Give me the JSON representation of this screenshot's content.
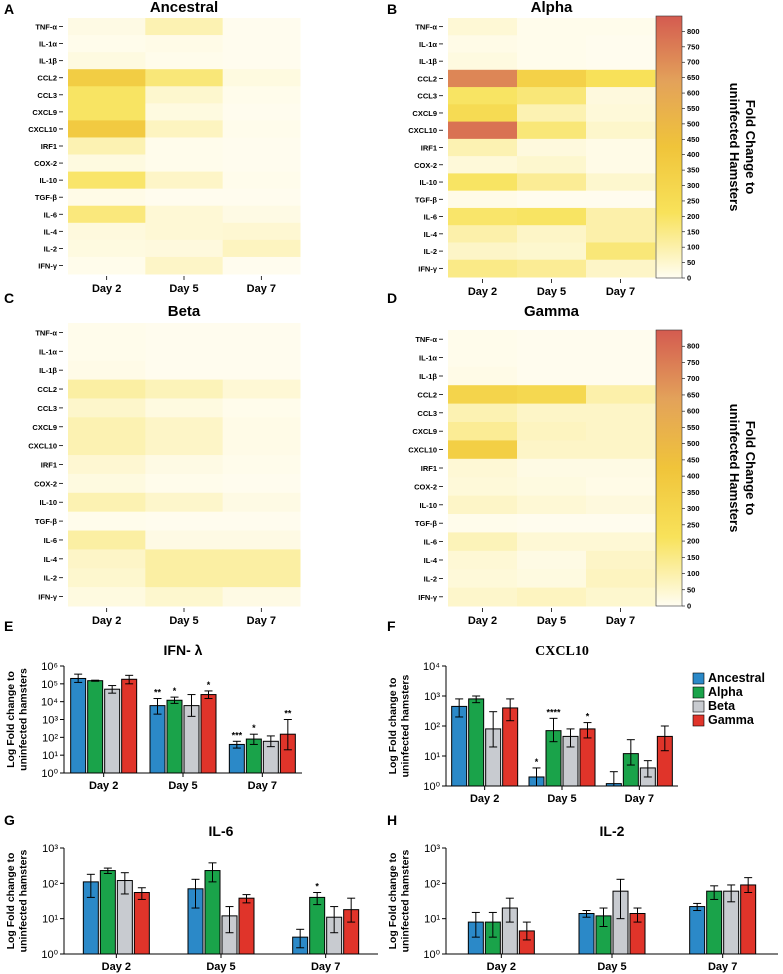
{
  "figure": {
    "panel_letters": [
      "A",
      "B",
      "C",
      "D",
      "E",
      "F",
      "G",
      "H"
    ],
    "colorbar": {
      "label_line1": "Fold Change to",
      "label_line2": "uninfected Hamsters",
      "ticks": [
        0,
        50,
        100,
        150,
        200,
        250,
        300,
        350,
        400,
        450,
        500,
        550,
        600,
        650,
        700,
        750,
        800
      ],
      "range": [
        0,
        850
      ],
      "colors": [
        "#fffdf2",
        "#f8e25a",
        "#f0c43a",
        "#e3a25a",
        "#d45b50"
      ]
    },
    "bar_legend": {
      "entries": [
        "Ancestral",
        "Alpha",
        "Beta",
        "Gamma"
      ],
      "colors": [
        "#2b89c8",
        "#1aa34a",
        "#c8cbd0",
        "#e0342a"
      ]
    },
    "sig_marks": {
      "ifn": [
        "**",
        "*",
        "*",
        "***",
        "*",
        "**"
      ],
      "cxcl10": [
        "*",
        "****",
        "*"
      ],
      "il6": [
        "*"
      ]
    }
  },
  "chart_data": [
    {
      "type": "heatmap",
      "panel": "A",
      "title": "Ancestral",
      "columns": [
        "Day 2",
        "Day 5",
        "Day 7"
      ],
      "rows": [
        "TNF-α",
        "IL-1α",
        "IL-1β",
        "CCL2",
        "CCL3",
        "CXCL9",
        "CXCL10",
        "IRF1",
        "COX-2",
        "IL-10",
        "TGF-β",
        "IL-6",
        "IL-4",
        "IL-2",
        "IFN-γ"
      ],
      "values": [
        [
          20,
          90,
          5
        ],
        [
          10,
          15,
          5
        ],
        [
          25,
          10,
          5
        ],
        [
          360,
          170,
          25
        ],
        [
          200,
          50,
          10
        ],
        [
          200,
          25,
          5
        ],
        [
          380,
          70,
          10
        ],
        [
          90,
          10,
          5
        ],
        [
          25,
          10,
          5
        ],
        [
          190,
          60,
          10
        ],
        [
          15,
          5,
          5
        ],
        [
          165,
          40,
          20
        ],
        [
          30,
          40,
          45
        ],
        [
          25,
          30,
          70
        ],
        [
          10,
          60,
          5
        ]
      ]
    },
    {
      "type": "heatmap",
      "panel": "B",
      "title": "Alpha",
      "columns": [
        "Day 2",
        "Day 5",
        "Day 7"
      ],
      "rows": [
        "TNF-α",
        "IL-1α",
        "IL-1β",
        "CCL2",
        "CCL3",
        "CXCL9",
        "CXCL10",
        "IRF1",
        "COX-2",
        "IL-10",
        "TGF-β",
        "IL-6",
        "IL-4",
        "IL-2",
        "IFN-γ"
      ],
      "values": [
        [
          40,
          10,
          10
        ],
        [
          15,
          10,
          5
        ],
        [
          25,
          10,
          5
        ],
        [
          720,
          330,
          220
        ],
        [
          200,
          170,
          30
        ],
        [
          260,
          90,
          35
        ],
        [
          780,
          170,
          55
        ],
        [
          90,
          30,
          15
        ],
        [
          35,
          50,
          15
        ],
        [
          200,
          130,
          50
        ],
        [
          15,
          5,
          5
        ],
        [
          190,
          200,
          100
        ],
        [
          100,
          60,
          100
        ],
        [
          60,
          50,
          170
        ],
        [
          150,
          130,
          60
        ]
      ]
    },
    {
      "type": "heatmap",
      "panel": "C",
      "title": "Beta",
      "columns": [
        "Day 2",
        "Day 5",
        "Day 7"
      ],
      "rows": [
        "TNF-α",
        "IL-1α",
        "IL-1β",
        "CCL2",
        "CCL3",
        "CXCL9",
        "CXCL10",
        "IRF1",
        "COX-2",
        "IL-10",
        "TGF-β",
        "IL-6",
        "IL-4",
        "IL-2",
        "IFN-γ"
      ],
      "values": [
        [
          10,
          5,
          5
        ],
        [
          10,
          5,
          5
        ],
        [
          15,
          5,
          5
        ],
        [
          110,
          80,
          40
        ],
        [
          55,
          25,
          10
        ],
        [
          90,
          60,
          15
        ],
        [
          90,
          60,
          15
        ],
        [
          45,
          20,
          10
        ],
        [
          25,
          10,
          5
        ],
        [
          90,
          55,
          20
        ],
        [
          10,
          5,
          5
        ],
        [
          110,
          20,
          20
        ],
        [
          60,
          110,
          110
        ],
        [
          50,
          110,
          110
        ],
        [
          25,
          50,
          20
        ]
      ]
    },
    {
      "type": "heatmap",
      "panel": "D",
      "title": "Gamma",
      "columns": [
        "Day 2",
        "Day 5",
        "Day 7"
      ],
      "rows": [
        "TNF-α",
        "IL-1α",
        "IL-1β",
        "CCL2",
        "CCL3",
        "CXCL9",
        "CXCL10",
        "IRF1",
        "COX-2",
        "IL-10",
        "TGF-β",
        "IL-6",
        "IL-4",
        "IL-2",
        "IFN-γ"
      ],
      "values": [
        [
          10,
          5,
          5
        ],
        [
          10,
          5,
          5
        ],
        [
          15,
          5,
          5
        ],
        [
          310,
          280,
          100
        ],
        [
          90,
          60,
          60
        ],
        [
          130,
          70,
          60
        ],
        [
          350,
          60,
          60
        ],
        [
          40,
          20,
          20
        ],
        [
          35,
          25,
          15
        ],
        [
          60,
          40,
          30
        ],
        [
          10,
          5,
          5
        ],
        [
          80,
          40,
          40
        ],
        [
          40,
          20,
          60
        ],
        [
          35,
          25,
          70
        ],
        [
          55,
          70,
          50
        ]
      ]
    },
    {
      "type": "bar",
      "panel": "E",
      "title": "IFN- λ",
      "yscale": "log",
      "ylabel_line1": "Log Fold change to",
      "ylabel_line2": "uninfected hamsters",
      "yticks": [
        "10⁰",
        "10¹",
        "10²",
        "10³",
        "10⁴",
        "10⁵",
        "10⁶"
      ],
      "ylim": [
        1,
        1000000
      ],
      "categories": [
        "Day 2",
        "Day 5",
        "Day 7"
      ],
      "series": [
        {
          "name": "Ancestral",
          "values": [
            200000,
            6000,
            40
          ],
          "err": [
            [
              120000,
              350000
            ],
            [
              2000,
              15000
            ],
            [
              25,
              60
            ]
          ]
        },
        {
          "name": "Alpha",
          "values": [
            150000,
            12000,
            80
          ],
          "err": [
            [
              140000,
              160000
            ],
            [
              8000,
              18000
            ],
            [
              40,
              150
            ]
          ]
        },
        {
          "name": "Beta",
          "values": [
            50000,
            6000,
            60
          ],
          "err": [
            [
              30000,
              80000
            ],
            [
              1500,
              25000
            ],
            [
              30,
              120
            ]
          ]
        },
        {
          "name": "Gamma",
          "values": [
            180000,
            25000,
            150
          ],
          "err": [
            [
              100000,
              300000
            ],
            [
              15000,
              40000
            ],
            [
              20,
              1000
            ]
          ]
        }
      ],
      "sig_key": "ifn"
    },
    {
      "type": "bar",
      "panel": "F",
      "title": "CXCL10",
      "yscale": "log",
      "ylabel_line1": "Log Fold change to",
      "ylabel_line2": "uninfected hamsters",
      "yticks": [
        "10⁰",
        "10¹",
        "10²",
        "10³",
        "10⁴"
      ],
      "ylim": [
        1,
        10000
      ],
      "categories": [
        "Day 2",
        "Day 5",
        "Day 7"
      ],
      "series": [
        {
          "name": "Ancestral",
          "values": [
            450,
            2,
            1.2
          ],
          "err": [
            [
              200,
              800
            ],
            [
              1,
              4
            ],
            [
              1,
              3
            ]
          ]
        },
        {
          "name": "Alpha",
          "values": [
            800,
            70,
            12
          ],
          "err": [
            [
              600,
              1000
            ],
            [
              30,
              180
            ],
            [
              5,
              35
            ]
          ]
        },
        {
          "name": "Beta",
          "values": [
            80,
            45,
            4
          ],
          "err": [
            [
              20,
              300
            ],
            [
              20,
              80
            ],
            [
              2,
              7
            ]
          ]
        },
        {
          "name": "Gamma",
          "values": [
            400,
            80,
            45
          ],
          "err": [
            [
              150,
              800
            ],
            [
              40,
              130
            ],
            [
              15,
              100
            ]
          ]
        }
      ],
      "sig_key": "cxcl10"
    },
    {
      "type": "bar",
      "panel": "G",
      "title": "IL-6",
      "yscale": "log",
      "ylabel_line1": "Log Fold change to",
      "ylabel_line2": "uninfected hamsters",
      "yticks": [
        "10⁰",
        "10¹",
        "10²",
        "10³"
      ],
      "ylim": [
        1,
        1000
      ],
      "categories": [
        "Day 2",
        "Day 5",
        "Day 7"
      ],
      "series": [
        {
          "name": "Ancestral",
          "values": [
            110,
            70,
            3
          ],
          "err": [
            [
              40,
              180
            ],
            [
              20,
              130
            ],
            [
              1.5,
              5
            ]
          ]
        },
        {
          "name": "Alpha",
          "values": [
            230,
            230,
            40
          ],
          "err": [
            [
              190,
              270
            ],
            [
              110,
              380
            ],
            [
              25,
              55
            ]
          ]
        },
        {
          "name": "Beta",
          "values": [
            120,
            12,
            11
          ],
          "err": [
            [
              50,
              200
            ],
            [
              4,
              22
            ],
            [
              4,
              22
            ]
          ]
        },
        {
          "name": "Gamma",
          "values": [
            55,
            38,
            18
          ],
          "err": [
            [
              35,
              75
            ],
            [
              28,
              48
            ],
            [
              8,
              38
            ]
          ]
        }
      ],
      "sig_key": "il6"
    },
    {
      "type": "bar",
      "panel": "H",
      "title": "IL-2",
      "yscale": "log",
      "ylabel_line1": "Log Fold change to",
      "ylabel_line2": "uninfected hamsters",
      "yticks": [
        "10⁰",
        "10¹",
        "10²",
        "10³"
      ],
      "ylim": [
        1,
        1000
      ],
      "categories": [
        "Day 2",
        "Day 5",
        "Day 7"
      ],
      "series": [
        {
          "name": "Ancestral",
          "values": [
            8,
            14,
            22
          ],
          "err": [
            [
              3,
              15
            ],
            [
              11,
              17
            ],
            [
              17,
              27
            ]
          ]
        },
        {
          "name": "Alpha",
          "values": [
            8,
            12,
            60
          ],
          "err": [
            [
              3,
              15
            ],
            [
              6,
              20
            ],
            [
              35,
              85
            ]
          ]
        },
        {
          "name": "Beta",
          "values": [
            20,
            60,
            60
          ],
          "err": [
            [
              8,
              38
            ],
            [
              10,
              130
            ],
            [
              30,
              90
            ]
          ]
        },
        {
          "name": "Gamma",
          "values": [
            4.5,
            14,
            90
          ],
          "err": [
            [
              2.5,
              8
            ],
            [
              8,
              20
            ],
            [
              55,
              145
            ]
          ]
        }
      ],
      "sig_key": null
    }
  ]
}
